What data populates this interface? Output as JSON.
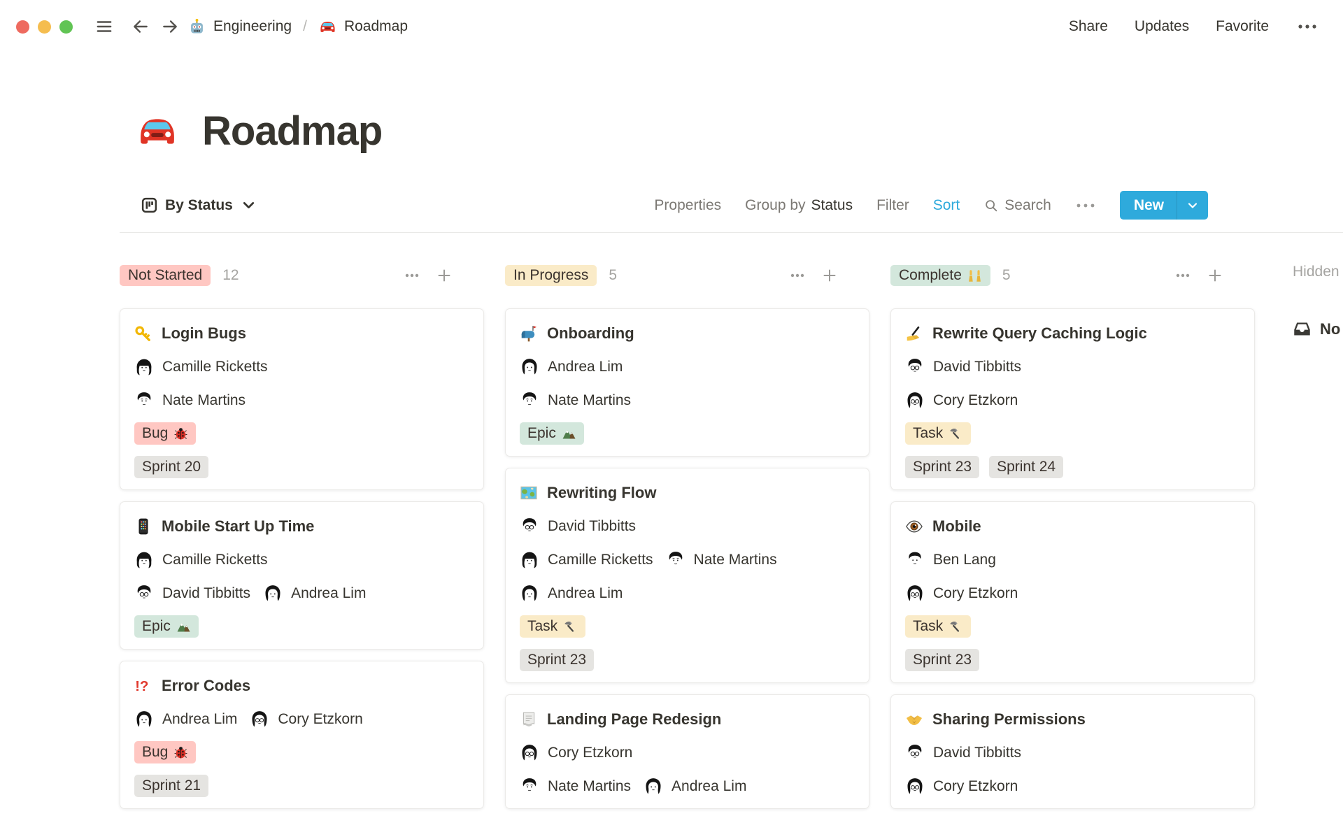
{
  "window": {
    "controls": [
      {
        "name": "close",
        "color": "#EE6A5F"
      },
      {
        "name": "minimize",
        "color": "#F5BD4F"
      },
      {
        "name": "zoom",
        "color": "#61C454"
      }
    ]
  },
  "topbar": {
    "breadcrumb": [
      {
        "icon": "robot",
        "label": "Engineering"
      },
      {
        "icon": "car",
        "label": "Roadmap"
      }
    ],
    "separator": "/",
    "actions": [
      "Share",
      "Updates",
      "Favorite"
    ]
  },
  "page": {
    "icon": "car",
    "title": "Roadmap"
  },
  "toolbar": {
    "view": {
      "icon": "board",
      "label": "By Status"
    },
    "properties": "Properties",
    "group_by": "Group by",
    "group_by_value": "Status",
    "filter": "Filter",
    "sort": "Sort",
    "search": "Search",
    "new_label": "New"
  },
  "colors": {
    "accent_blue": "#2EAADC",
    "badge_red": "#FFC7C2",
    "badge_yellow": "#FAEBC8",
    "badge_green": "#D3E7DC",
    "badge_gray": "#E5E4E1",
    "text": "#37352F",
    "muted": "#A5A4A1"
  },
  "board": {
    "hidden_label": "Hidden",
    "hidden_group": {
      "icon": "inbox",
      "label": "No"
    },
    "columns": [
      {
        "label": "Not Started",
        "color": "red",
        "count": "12",
        "cards": [
          {
            "icon": "key",
            "title": "Login Bugs",
            "people": [
              [
                {
                  "avatar": "female-headphones",
                  "name": "Camille Ricketts"
                }
              ],
              [
                {
                  "avatar": "male-short",
                  "name": "Nate Martins"
                }
              ]
            ],
            "tags": [
              [
                {
                  "label": "Bug",
                  "icon": "bug",
                  "color": "red"
                }
              ],
              [
                {
                  "label": "Sprint 20",
                  "color": "gray"
                }
              ]
            ]
          },
          {
            "icon": "phone",
            "title": "Mobile Start Up Time",
            "people": [
              [
                {
                  "avatar": "female-headphones",
                  "name": "Camille Ricketts"
                }
              ],
              [
                {
                  "avatar": "male-glasses",
                  "name": "David Tibbitts"
                },
                {
                  "avatar": "female-bob",
                  "name": "Andrea Lim"
                }
              ]
            ],
            "tags": [
              [
                {
                  "label": "Epic",
                  "icon": "mountain",
                  "color": "green"
                }
              ]
            ]
          },
          {
            "icon": "interrobang",
            "title": "Error Codes",
            "people": [
              [
                {
                  "avatar": "female-bob",
                  "name": "Andrea Lim"
                },
                {
                  "avatar": "female-glasses",
                  "name": "Cory Etzkorn"
                }
              ]
            ],
            "tags": [
              [
                {
                  "label": "Bug",
                  "icon": "bug",
                  "color": "red"
                }
              ],
              [
                {
                  "label": "Sprint 21",
                  "color": "gray"
                }
              ]
            ]
          }
        ]
      },
      {
        "label": "In Progress",
        "color": "yellow",
        "count": "5",
        "cards": [
          {
            "icon": "mailbox",
            "title": "Onboarding",
            "people": [
              [
                {
                  "avatar": "female-bob",
                  "name": "Andrea Lim"
                }
              ],
              [
                {
                  "avatar": "male-short",
                  "name": "Nate Martins"
                }
              ]
            ],
            "tags": [
              [
                {
                  "label": "Epic",
                  "icon": "mountain",
                  "color": "green"
                }
              ]
            ]
          },
          {
            "icon": "map",
            "title": "Rewriting Flow",
            "people": [
              [
                {
                  "avatar": "male-glasses",
                  "name": "David Tibbitts"
                }
              ],
              [
                {
                  "avatar": "female-headphones",
                  "name": "Camille Ricketts"
                },
                {
                  "avatar": "male-short",
                  "name": "Nate Martins"
                }
              ],
              [
                {
                  "avatar": "female-bob",
                  "name": "Andrea Lim"
                }
              ]
            ],
            "tags": [
              [
                {
                  "label": "Task",
                  "icon": "hammer",
                  "color": "yellow"
                }
              ],
              [
                {
                  "label": "Sprint 23",
                  "color": "gray"
                }
              ]
            ]
          },
          {
            "icon": "page",
            "title": "Landing Page Redesign",
            "people": [
              [
                {
                  "avatar": "female-glasses",
                  "name": "Cory Etzkorn"
                }
              ],
              [
                {
                  "avatar": "male-short",
                  "name": "Nate Martins"
                },
                {
                  "avatar": "female-bob",
                  "name": "Andrea Lim"
                }
              ]
            ],
            "tags": []
          }
        ]
      },
      {
        "label": "Complete",
        "icon": "raising-hands",
        "color": "green",
        "count": "5",
        "cards": [
          {
            "icon": "writing-hand",
            "title": "Rewrite Query Caching Logic",
            "people": [
              [
                {
                  "avatar": "male-glasses",
                  "name": "David Tibbitts"
                }
              ],
              [
                {
                  "avatar": "female-glasses",
                  "name": "Cory Etzkorn"
                }
              ]
            ],
            "tags": [
              [
                {
                  "label": "Task",
                  "icon": "hammer",
                  "color": "yellow"
                }
              ],
              [
                {
                  "label": "Sprint 23",
                  "color": "gray"
                },
                {
                  "label": "Sprint 24",
                  "color": "gray"
                }
              ]
            ]
          },
          {
            "icon": "eye",
            "title": "Mobile",
            "people": [
              [
                {
                  "avatar": "male-plain",
                  "name": "Ben Lang"
                }
              ],
              [
                {
                  "avatar": "female-glasses",
                  "name": "Cory Etzkorn"
                }
              ]
            ],
            "tags": [
              [
                {
                  "label": "Task",
                  "icon": "hammer",
                  "color": "yellow"
                }
              ],
              [
                {
                  "label": "Sprint 23",
                  "color": "gray"
                }
              ]
            ]
          },
          {
            "icon": "handshake",
            "title": "Sharing Permissions",
            "people": [
              [
                {
                  "avatar": "male-glasses",
                  "name": "David Tibbitts"
                }
              ],
              [
                {
                  "avatar": "female-glasses",
                  "name": "Cory Etzkorn"
                }
              ]
            ],
            "tags": []
          }
        ]
      }
    ]
  }
}
